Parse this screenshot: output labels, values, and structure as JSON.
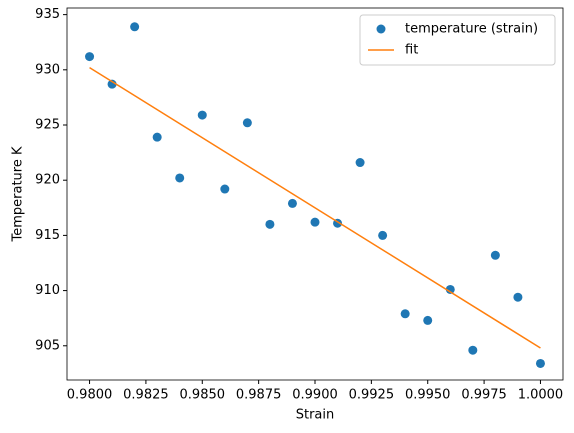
{
  "chart_data": {
    "type": "scatter",
    "xlabel": "Strain",
    "ylabel": "Temperature K",
    "xlim": [
      0.979,
      1.001
    ],
    "ylim": [
      901.9,
      935.6
    ],
    "xticks": [
      {
        "value": 0.98,
        "label": "0.9800"
      },
      {
        "value": 0.9825,
        "label": "0.9825"
      },
      {
        "value": 0.985,
        "label": "0.9850"
      },
      {
        "value": 0.9875,
        "label": "0.9875"
      },
      {
        "value": 0.99,
        "label": "0.9900"
      },
      {
        "value": 0.9925,
        "label": "0.9925"
      },
      {
        "value": 0.995,
        "label": "0.9950"
      },
      {
        "value": 0.9975,
        "label": "0.9975"
      },
      {
        "value": 1.0,
        "label": "1.0000"
      }
    ],
    "yticks": [
      905,
      910,
      915,
      920,
      925,
      930,
      935
    ],
    "legend": "upper right",
    "series": [
      {
        "name": "temperature (strain)",
        "color": "#1f77b4",
        "style": "marker",
        "x": [
          0.98,
          0.981,
          0.982,
          0.983,
          0.984,
          0.985,
          0.986,
          0.987,
          0.988,
          0.989,
          0.99,
          0.991,
          0.992,
          0.993,
          0.994,
          0.995,
          0.996,
          0.997,
          0.998,
          0.999,
          1.0
        ],
        "values": [
          931.2,
          928.7,
          933.9,
          923.9,
          920.2,
          925.9,
          919.2,
          925.2,
          916.0,
          917.9,
          916.2,
          916.1,
          921.6,
          915.0,
          907.9,
          907.3,
          910.1,
          904.6,
          913.2,
          909.4,
          903.4
        ]
      },
      {
        "name": "fit",
        "color": "#ff7f0e",
        "style": "line",
        "x": [
          0.98,
          1.0
        ],
        "values": [
          930.2,
          904.8
        ]
      }
    ]
  }
}
